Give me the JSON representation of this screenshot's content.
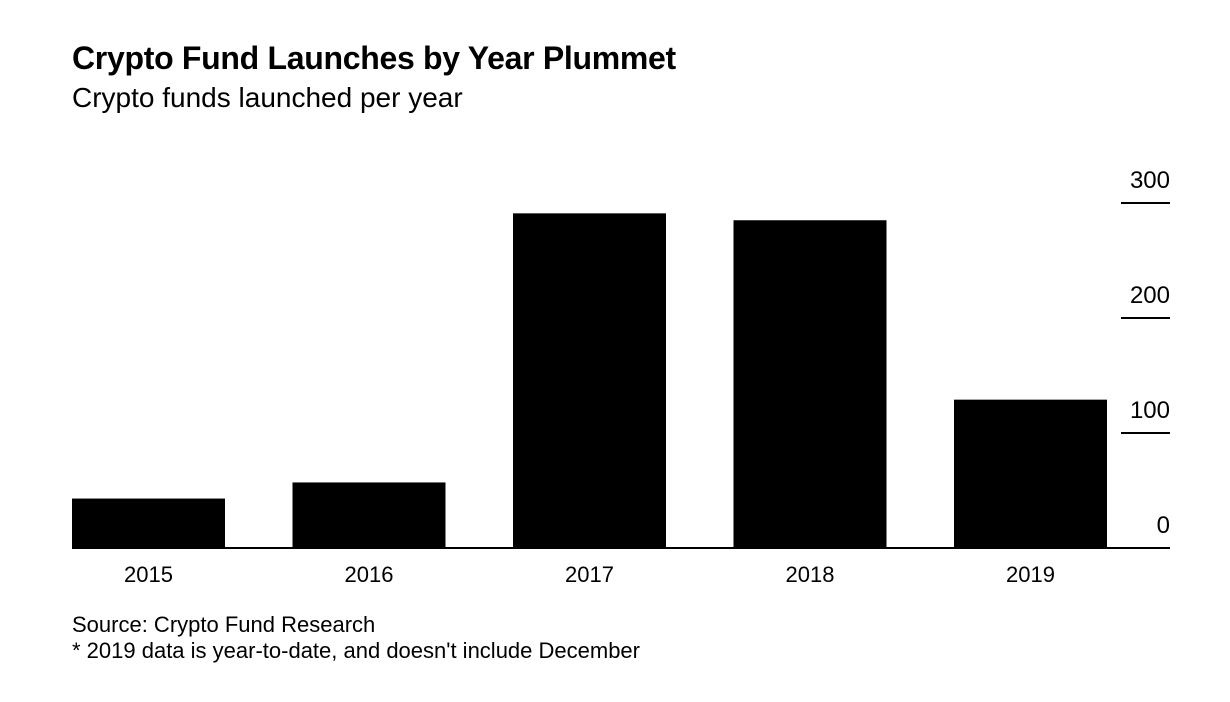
{
  "chart_data": {
    "type": "bar",
    "title": "Crypto Fund Launches by Year Plummet",
    "subtitle": "Crypto funds launched per year",
    "categories": [
      "2015",
      "2016",
      "2017",
      "2018",
      "2019"
    ],
    "values": [
      43,
      57,
      291,
      285,
      129
    ],
    "ylim": [
      0,
      300
    ],
    "yticks": [
      0,
      100,
      200,
      300
    ],
    "ytick_position": "right",
    "grid": false,
    "bar_color": "#000000",
    "source": "Source: Crypto Fund Research",
    "note": "* 2019 data is year-to-date, and doesn't include December"
  }
}
